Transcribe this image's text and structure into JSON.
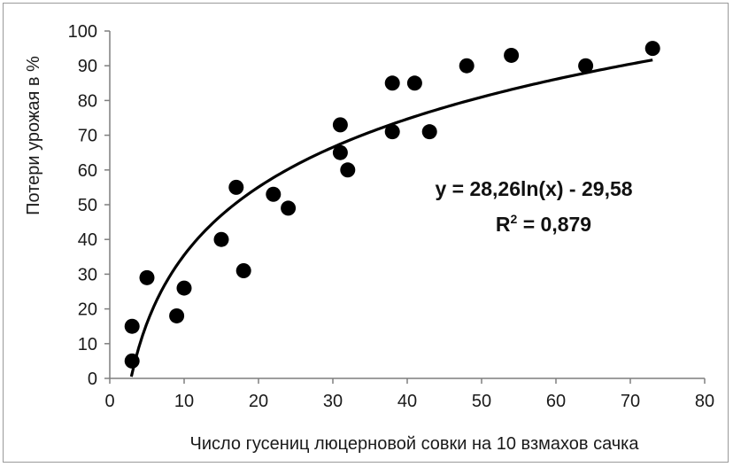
{
  "chart_data": {
    "type": "scatter",
    "xlabel": "Число гусениц люцерновой совки на 10 взмахов сачка",
    "ylabel": "Потери урожая в %",
    "xlim": [
      0,
      80
    ],
    "ylim": [
      0,
      100
    ],
    "x_ticks": [
      "0",
      "10",
      "20",
      "30",
      "40",
      "50",
      "60",
      "70",
      "80"
    ],
    "y_ticks": [
      "0",
      "10",
      "20",
      "30",
      "40",
      "50",
      "60",
      "70",
      "80",
      "90",
      "100"
    ],
    "grid": false,
    "legend": "none",
    "marker_color": "#000000",
    "points": [
      {
        "x": 3,
        "y": 15
      },
      {
        "x": 3,
        "y": 5
      },
      {
        "x": 5,
        "y": 29
      },
      {
        "x": 9,
        "y": 18
      },
      {
        "x": 10,
        "y": 26
      },
      {
        "x": 15,
        "y": 40
      },
      {
        "x": 17,
        "y": 55
      },
      {
        "x": 18,
        "y": 31
      },
      {
        "x": 22,
        "y": 53
      },
      {
        "x": 24,
        "y": 49
      },
      {
        "x": 31,
        "y": 73
      },
      {
        "x": 31,
        "y": 65
      },
      {
        "x": 32,
        "y": 60
      },
      {
        "x": 38,
        "y": 85
      },
      {
        "x": 38,
        "y": 71
      },
      {
        "x": 41,
        "y": 85
      },
      {
        "x": 43,
        "y": 71
      },
      {
        "x": 48,
        "y": 90
      },
      {
        "x": 54,
        "y": 93
      },
      {
        "x": 64,
        "y": 90
      },
      {
        "x": 73,
        "y": 95
      }
    ],
    "trendline": {
      "type": "logarithmic",
      "a": 28.26,
      "b": -29.58,
      "x_range": [
        2.9,
        73
      ],
      "equation_text": "y = 28,26ln(x) - 29,58",
      "r2_prefix": "R",
      "r2_sup": "2",
      "r2_value_text": " = 0,879"
    }
  }
}
